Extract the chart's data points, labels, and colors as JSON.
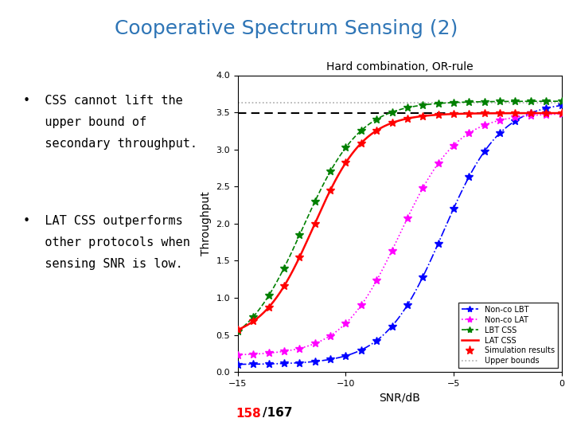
{
  "title": "Cooperative Spectrum Sensing (2)",
  "title_color": "#2E75B6",
  "chart_title": "Hard combination, OR-rule",
  "xlabel": "SNR/dB",
  "ylabel": "Throughput",
  "xlim": [
    -15,
    0
  ],
  "ylim": [
    0,
    4
  ],
  "yticks": [
    0,
    0.5,
    1,
    1.5,
    2,
    2.5,
    3,
    3.5,
    4
  ],
  "xticks": [
    -15,
    -10,
    -5,
    0
  ],
  "upper_bound_dotted": 3.63,
  "lat_css_bound": 3.49,
  "bullet1_line1": "•  CSS cannot lift the",
  "bullet1_line2": "   upper bound of",
  "bullet1_line3": "   secondary throughput.",
  "bullet2_line1": "•  LAT CSS outperforms",
  "bullet2_line2": "   other protocols when",
  "bullet2_line3": "   sensing SNR is low.",
  "page_num": "158",
  "page_total": "/167",
  "bg_color": "#FFFFFF"
}
